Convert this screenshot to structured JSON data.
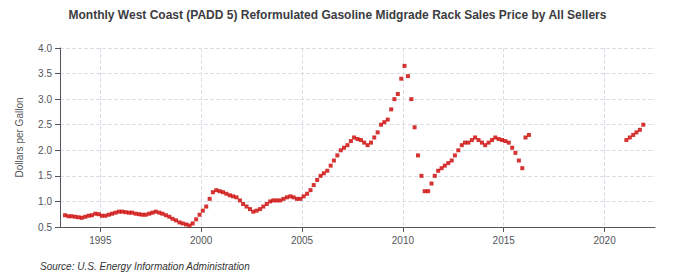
{
  "chart_data": {
    "type": "scatter",
    "title": "Monthly West Coast (PADD 5) Reformulated Gasoline Midgrade Rack Sales Price by All Sellers",
    "ylabel": "Dollars per Gallon",
    "annotations": [
      "Source: U.S. Energy Information Administration"
    ],
    "color": "#cc0000",
    "marker": "square",
    "grid": true,
    "xlim": [
      1993.0,
      2022.5
    ],
    "ylim": [
      0.5,
      4.0
    ],
    "xticks": [
      1995,
      2000,
      2005,
      2010,
      2015,
      2020
    ],
    "yticks": [
      0.5,
      {
        "value": 1.0,
        "label": "1.0"
      },
      1.5,
      {
        "value": 2.0,
        "label": "2.0"
      },
      2.5,
      {
        "value": 3.0,
        "label": "3.0"
      },
      3.5,
      {
        "value": 4.0,
        "label": "4.0"
      }
    ],
    "x": [
      1993.25,
      1993.42,
      1993.58,
      1993.75,
      1993.92,
      1994.08,
      1994.25,
      1994.42,
      1994.58,
      1994.75,
      1994.92,
      1995.08,
      1995.25,
      1995.42,
      1995.58,
      1995.75,
      1995.92,
      1996.08,
      1996.25,
      1996.42,
      1996.58,
      1996.75,
      1996.92,
      1997.08,
      1997.25,
      1997.42,
      1997.58,
      1997.75,
      1997.92,
      1998.08,
      1998.25,
      1998.42,
      1998.58,
      1998.75,
      1998.92,
      1999.08,
      1999.25,
      1999.42,
      1999.58,
      1999.75,
      1999.92,
      2000.08,
      2000.25,
      2000.42,
      2000.58,
      2000.75,
      2000.92,
      2001.08,
      2001.25,
      2001.42,
      2001.58,
      2001.75,
      2001.92,
      2002.08,
      2002.25,
      2002.42,
      2002.58,
      2002.75,
      2002.92,
      2003.08,
      2003.25,
      2003.42,
      2003.58,
      2003.75,
      2003.92,
      2004.08,
      2004.25,
      2004.42,
      2004.58,
      2004.75,
      2004.92,
      2005.08,
      2005.25,
      2005.42,
      2005.58,
      2005.75,
      2005.92,
      2006.08,
      2006.25,
      2006.42,
      2006.58,
      2006.75,
      2006.92,
      2007.08,
      2007.25,
      2007.42,
      2007.58,
      2007.75,
      2007.92,
      2008.08,
      2008.25,
      2008.42,
      2008.58,
      2008.75,
      2008.92,
      2009.08,
      2009.25,
      2009.42,
      2009.58,
      2009.75,
      2009.92,
      2010.08,
      2010.25,
      2010.42,
      2010.58,
      2010.75,
      2010.92,
      2011.08,
      2011.25,
      2011.42,
      2011.58,
      2011.75,
      2011.92,
      2012.08,
      2012.25,
      2012.42,
      2012.58,
      2012.75,
      2012.92,
      2013.08,
      2013.25,
      2013.42,
      2013.58,
      2013.75,
      2013.92,
      2014.08,
      2014.25,
      2014.42,
      2014.58,
      2014.75,
      2014.92,
      2015.08,
      2015.25,
      2015.42,
      2015.58,
      2015.75,
      2015.92,
      2016.08,
      2016.25,
      2021.08,
      2021.25,
      2021.42,
      2021.58,
      2021.75,
      2021.92
    ],
    "values": [
      0.73,
      0.71,
      0.71,
      0.7,
      0.69,
      0.68,
      0.7,
      0.72,
      0.73,
      0.76,
      0.75,
      0.72,
      0.72,
      0.74,
      0.76,
      0.78,
      0.8,
      0.8,
      0.79,
      0.78,
      0.78,
      0.76,
      0.75,
      0.74,
      0.74,
      0.76,
      0.78,
      0.8,
      0.78,
      0.76,
      0.73,
      0.7,
      0.66,
      0.63,
      0.59,
      0.57,
      0.55,
      0.53,
      0.57,
      0.65,
      0.74,
      0.82,
      0.9,
      1.05,
      1.18,
      1.22,
      1.2,
      1.18,
      1.15,
      1.12,
      1.1,
      1.08,
      1.02,
      0.95,
      0.9,
      0.85,
      0.8,
      0.82,
      0.85,
      0.9,
      0.95,
      1.0,
      1.02,
      1.02,
      1.02,
      1.05,
      1.08,
      1.1,
      1.08,
      1.05,
      1.05,
      1.1,
      1.15,
      1.22,
      1.32,
      1.42,
      1.5,
      1.55,
      1.6,
      1.7,
      1.8,
      1.9,
      2.0,
      2.05,
      2.1,
      2.18,
      2.25,
      2.22,
      2.2,
      2.15,
      2.1,
      2.15,
      2.25,
      2.35,
      2.5,
      2.55,
      2.6,
      2.8,
      3.0,
      3.1,
      3.4,
      3.65,
      3.45,
      3.0,
      2.45,
      1.9,
      1.5,
      1.2,
      1.2,
      1.35,
      1.5,
      1.6,
      1.65,
      1.7,
      1.75,
      1.8,
      1.9,
      2.0,
      2.1,
      2.15,
      2.15,
      2.2,
      2.25,
      2.2,
      2.15,
      2.1,
      2.15,
      2.2,
      2.25,
      2.22,
      2.2,
      2.18,
      2.15,
      2.05,
      1.95,
      1.8,
      1.65,
      2.25,
      2.3,
      2.2,
      2.25,
      2.3,
      2.35,
      2.4,
      2.5
    ]
  }
}
